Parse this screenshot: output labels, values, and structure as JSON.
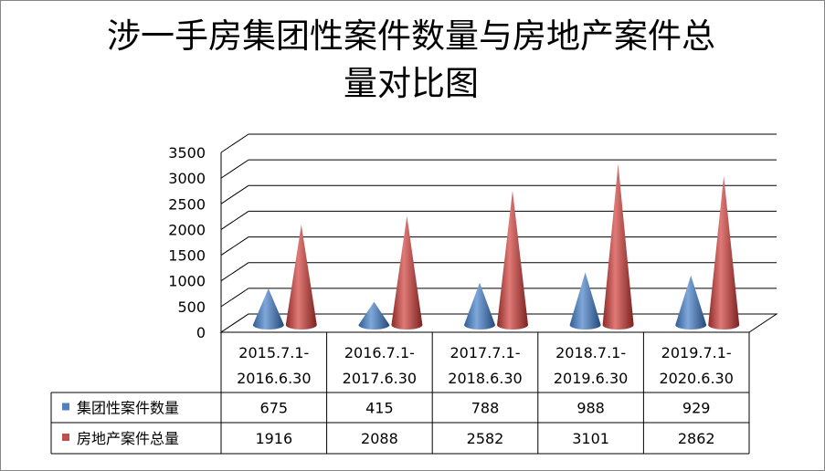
{
  "chart_data": {
    "type": "bar",
    "title": "涉一手房集团性案件数量与房地产案件总量对比图",
    "title_lines": [
      "涉一手房集团性案件数量与房地产案件总",
      "量对比图"
    ],
    "categories": [
      [
        "2015.7.1-",
        "2016.6.30"
      ],
      [
        "2016.7.1-",
        "2017.6.30"
      ],
      [
        "2017.7.1-",
        "2018.6.30"
      ],
      [
        "2018.7.1-",
        "2019.6.30"
      ],
      [
        "2019.7.1-",
        "2020.6.30"
      ]
    ],
    "series": [
      {
        "name": "集团性案件数量",
        "values": [
          675,
          415,
          788,
          988,
          929
        ],
        "color": "#4f81bd"
      },
      {
        "name": "房地产案件总量",
        "values": [
          1916,
          2088,
          2582,
          3101,
          2862
        ],
        "color": "#c0504d"
      }
    ],
    "yticks": [
      "0",
      "500",
      "1000",
      "1500",
      "2000",
      "2500",
      "3000",
      "3500"
    ],
    "ylim": [
      0,
      3500
    ],
    "shape": "cone",
    "grid": true,
    "legend": "data-table"
  }
}
